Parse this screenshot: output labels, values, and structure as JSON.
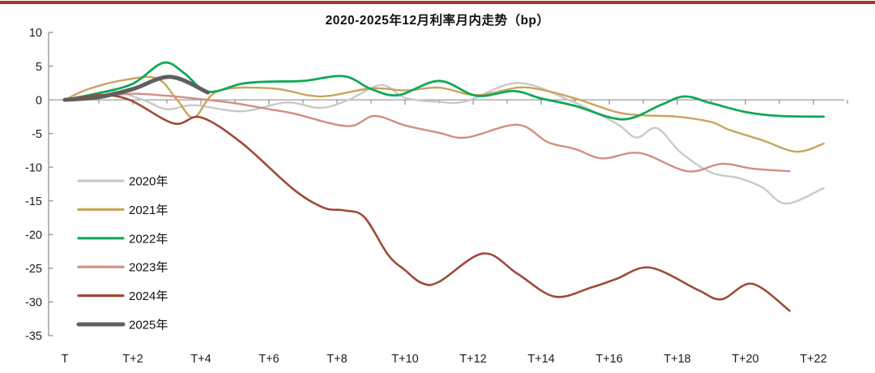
{
  "page": {
    "background_color": "#ffffff",
    "top_border_color": "#ae342a"
  },
  "chart_data": {
    "type": "line",
    "title": "2020-2025年12月利率月内走势（bp）",
    "x_axis": {
      "tick_labels": [
        "T",
        "T+2",
        "T+4",
        "T+6",
        "T+8",
        "T+10",
        "T+12",
        "T+14",
        "T+16",
        "T+18",
        "T+20",
        "T+22"
      ],
      "tick_values": [
        0,
        2,
        4,
        6,
        8,
        10,
        12,
        14,
        16,
        18,
        20,
        22
      ],
      "range": [
        0,
        23
      ],
      "minor_tick_every": 1,
      "unit": "trading day offset"
    },
    "y_axis": {
      "tick_labels": [
        "10",
        "5",
        "0",
        "-5",
        "-10",
        "-15",
        "-20",
        "-25",
        "-30",
        "-35"
      ],
      "tick_values": [
        10,
        5,
        0,
        -5,
        -10,
        -15,
        -20,
        -25,
        -30,
        -35
      ],
      "range": [
        -35,
        10
      ],
      "unit": "bp",
      "gridlines": false
    },
    "legend": {
      "position": "inside-left-middle"
    },
    "series": [
      {
        "name": "2020年",
        "color": "#c9c9c9",
        "width": 2.4,
        "points": [
          [
            0,
            0
          ],
          [
            1,
            0.8
          ],
          [
            1.5,
            1.2
          ],
          [
            2.3,
            0
          ],
          [
            3,
            -1.4
          ],
          [
            3.8,
            -0.8
          ],
          [
            5.2,
            -1.7
          ],
          [
            6.5,
            -0.4
          ],
          [
            7.5,
            -1.2
          ],
          [
            8.3,
            -0.1
          ],
          [
            9.3,
            2.2
          ],
          [
            10,
            0.3
          ],
          [
            11,
            -0.3
          ],
          [
            11.8,
            -0.2
          ],
          [
            13.3,
            2.5
          ],
          [
            14.8,
            0
          ],
          [
            16.2,
            -3.5
          ],
          [
            16.8,
            -5.6
          ],
          [
            17.4,
            -4.2
          ],
          [
            18.1,
            -7.8
          ],
          [
            19,
            -10.8
          ],
          [
            19.8,
            -11.6
          ],
          [
            20.5,
            -13
          ],
          [
            21.2,
            -15.4
          ],
          [
            22.3,
            -13.1
          ]
        ]
      },
      {
        "name": "2021年",
        "color": "#c8a45e",
        "width": 2.4,
        "points": [
          [
            0,
            0
          ],
          [
            0.7,
            1.6
          ],
          [
            1.7,
            2.9
          ],
          [
            2.7,
            3.2
          ],
          [
            3.3,
            0
          ],
          [
            3.8,
            -2.6
          ],
          [
            4.5,
            1.3
          ],
          [
            6.1,
            1.7
          ],
          [
            7.5,
            0.5
          ],
          [
            9,
            1.7
          ],
          [
            10,
            1.4
          ],
          [
            11,
            1.8
          ],
          [
            12.1,
            0.7
          ],
          [
            13.3,
            1.8
          ],
          [
            14,
            1.5
          ],
          [
            15,
            0.2
          ],
          [
            16.2,
            -1.8
          ],
          [
            17,
            -2.3
          ],
          [
            18,
            -2.5
          ],
          [
            19,
            -3.3
          ],
          [
            19.5,
            -4.4
          ],
          [
            20.5,
            -6
          ],
          [
            21.5,
            -7.7
          ],
          [
            22.3,
            -6.5
          ]
        ]
      },
      {
        "name": "2022年",
        "color": "#0fa957",
        "width": 2.8,
        "points": [
          [
            0,
            0
          ],
          [
            1,
            1
          ],
          [
            2,
            2.4
          ],
          [
            2.9,
            5.5
          ],
          [
            3.5,
            4
          ],
          [
            4.2,
            1.2
          ],
          [
            5.2,
            2.4
          ],
          [
            6,
            2.7
          ],
          [
            7,
            2.8
          ],
          [
            8.2,
            3.5
          ],
          [
            9,
            1.6
          ],
          [
            9.8,
            0.7
          ],
          [
            11,
            2.8
          ],
          [
            12.1,
            0.6
          ],
          [
            13.2,
            1.3
          ],
          [
            14,
            0.2
          ],
          [
            15,
            -0.9
          ],
          [
            16.4,
            -2.9
          ],
          [
            17.5,
            -0.8
          ],
          [
            18.2,
            0.5
          ],
          [
            19,
            -0.5
          ],
          [
            20,
            -1.8
          ],
          [
            21,
            -2.4
          ],
          [
            22.3,
            -2.5
          ]
        ]
      },
      {
        "name": "2023年",
        "color": "#d28e80",
        "width": 2.4,
        "points": [
          [
            0,
            0
          ],
          [
            1,
            0.5
          ],
          [
            2,
            0.9
          ],
          [
            3,
            0.6
          ],
          [
            4,
            0.1
          ],
          [
            5,
            -0.5
          ],
          [
            6,
            -1.4
          ],
          [
            6.7,
            -2
          ],
          [
            8.3,
            -3.9
          ],
          [
            9.1,
            -2.4
          ],
          [
            10,
            -3.8
          ],
          [
            11,
            -4.9
          ],
          [
            11.8,
            -5.6
          ],
          [
            13.3,
            -3.7
          ],
          [
            14.2,
            -6.3
          ],
          [
            15,
            -7.3
          ],
          [
            15.8,
            -8.7
          ],
          [
            16.9,
            -7.9
          ],
          [
            18.3,
            -10.6
          ],
          [
            19.3,
            -9.5
          ],
          [
            20.2,
            -10.2
          ],
          [
            21.3,
            -10.6
          ]
        ]
      },
      {
        "name": "2024年",
        "color": "#9e4a3a",
        "width": 2.6,
        "points": [
          [
            0,
            0
          ],
          [
            1,
            0.7
          ],
          [
            1.9,
            0
          ],
          [
            3.2,
            -3.5
          ],
          [
            4,
            -2.6
          ],
          [
            5.2,
            -6.4
          ],
          [
            6.7,
            -13.2
          ],
          [
            7.6,
            -16
          ],
          [
            8.2,
            -16.4
          ],
          [
            8.8,
            -17.4
          ],
          [
            9.5,
            -23
          ],
          [
            10,
            -25.3
          ],
          [
            10.5,
            -27.2
          ],
          [
            11,
            -27
          ],
          [
            12.3,
            -22.8
          ],
          [
            13.3,
            -25.8
          ],
          [
            14.4,
            -29.2
          ],
          [
            15.5,
            -27.8
          ],
          [
            16.2,
            -26.6
          ],
          [
            17.2,
            -24.9
          ],
          [
            18.6,
            -28.2
          ],
          [
            19.3,
            -29.6
          ],
          [
            20.2,
            -27.3
          ],
          [
            21.3,
            -31.3
          ]
        ]
      },
      {
        "name": "2025年",
        "color": "#5f5f5f",
        "width": 5,
        "points": [
          [
            0,
            0
          ],
          [
            1,
            0.4
          ],
          [
            2,
            1.6
          ],
          [
            3.1,
            3.4
          ],
          [
            4.2,
            1.1
          ]
        ]
      }
    ]
  }
}
